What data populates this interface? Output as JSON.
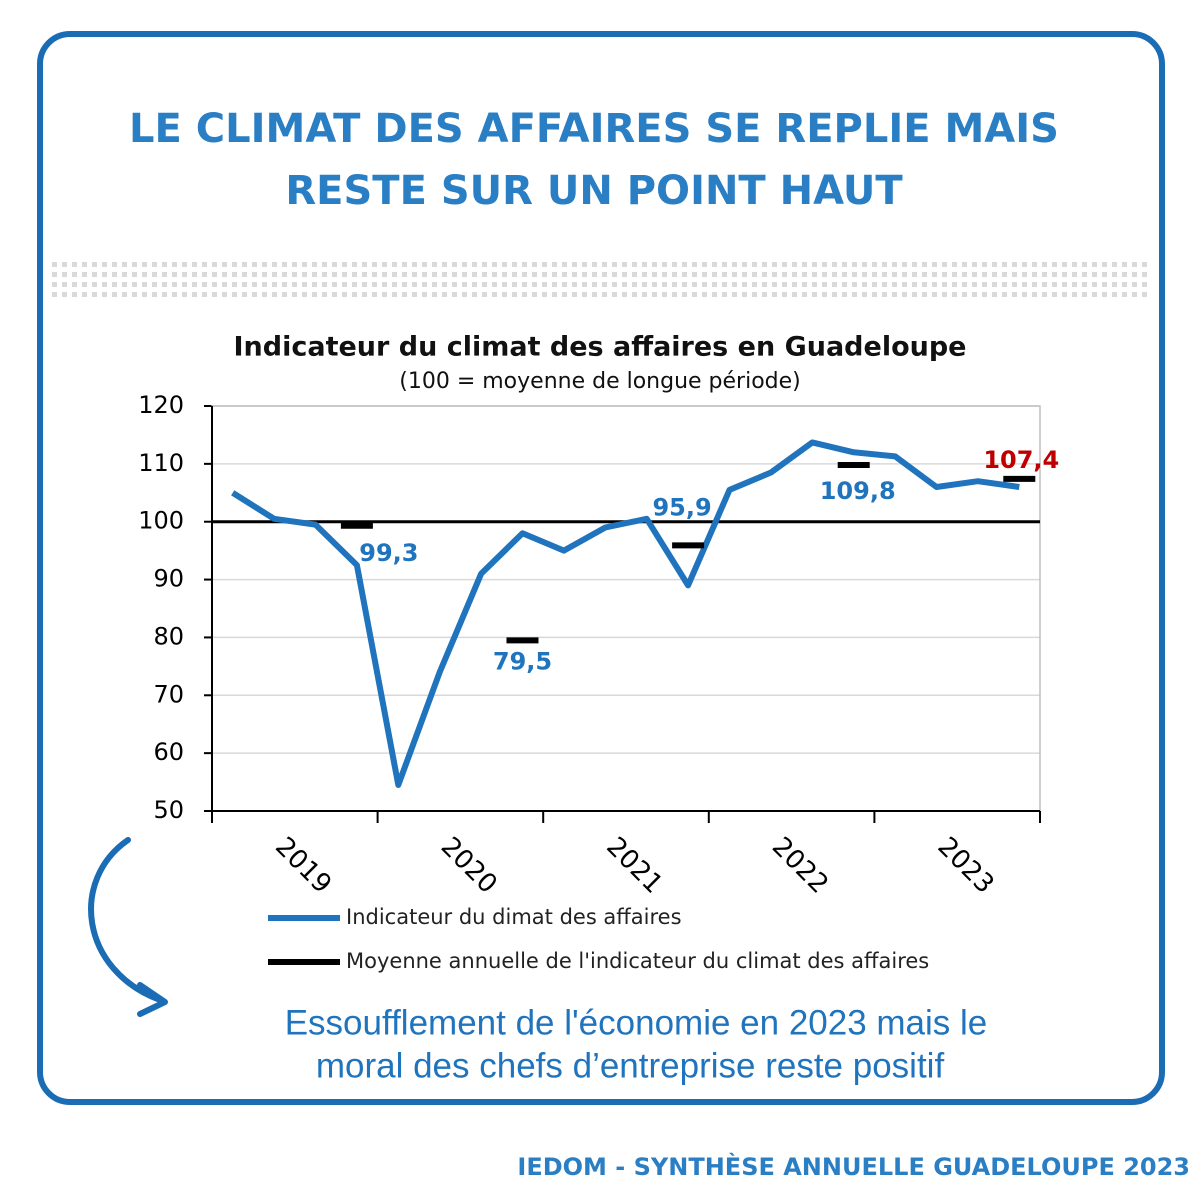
{
  "headline": [
    "LE CLIMAT DES AFFAIRES SE REPLIE MAIS",
    "RESTE SUR UN POINT HAUT"
  ],
  "chart_data": {
    "type": "line",
    "title": "Indicateur du climat des affaires en Guadeloupe",
    "subtitle": "(100 = moyenne de longue période)",
    "categories": [
      null,
      null,
      null,
      null,
      null,
      null,
      null,
      null,
      null,
      null,
      null,
      null,
      null,
      null,
      null,
      null,
      null,
      null,
      null,
      null
    ],
    "x_groups": [
      "2019",
      "2020",
      "2021",
      "2022",
      "2023"
    ],
    "series": [
      {
        "name": "Indicateur du dimat des affaires",
        "color": "#1f74bd",
        "values": [
          105,
          100.5,
          99.5,
          92.5,
          54.5,
          74,
          91,
          98,
          95,
          99,
          100.5,
          89,
          105.5,
          108.5,
          113.7,
          112,
          111.3,
          106,
          107,
          106
        ]
      },
      {
        "name": "Moyenne annuelle de l'indicateur du climat des affaires",
        "color": "#000000",
        "values": [
          null,
          null,
          null,
          99.3,
          null,
          null,
          null,
          79.5,
          null,
          null,
          null,
          95.9,
          null,
          null,
          null,
          109.8,
          null,
          null,
          null,
          107.4
        ],
        "value_labels": [
          null,
          null,
          null,
          "99,3",
          null,
          null,
          null,
          "79,5",
          null,
          null,
          null,
          "95,9",
          null,
          null,
          null,
          "109,8",
          null,
          null,
          null,
          "107,4"
        ],
        "value_label_colors": [
          null,
          null,
          null,
          "#1f74bd",
          null,
          null,
          null,
          "#1f74bd",
          null,
          null,
          null,
          "#1f74bd",
          null,
          null,
          null,
          "#1f74bd",
          null,
          null,
          null,
          "#c00000"
        ]
      }
    ],
    "reference_line": 100,
    "ylim": [
      50,
      120
    ],
    "yticks": [
      50,
      60,
      70,
      80,
      90,
      100,
      110,
      120
    ],
    "grid": true
  },
  "caption": [
    "Essoufflement de l'économie en 2023 mais le",
    "moral des chefs d’entreprise reste positif"
  ],
  "footer": "IEDOM - SYNTHÈSE ANNUELLE GUADELOUPE 2023"
}
